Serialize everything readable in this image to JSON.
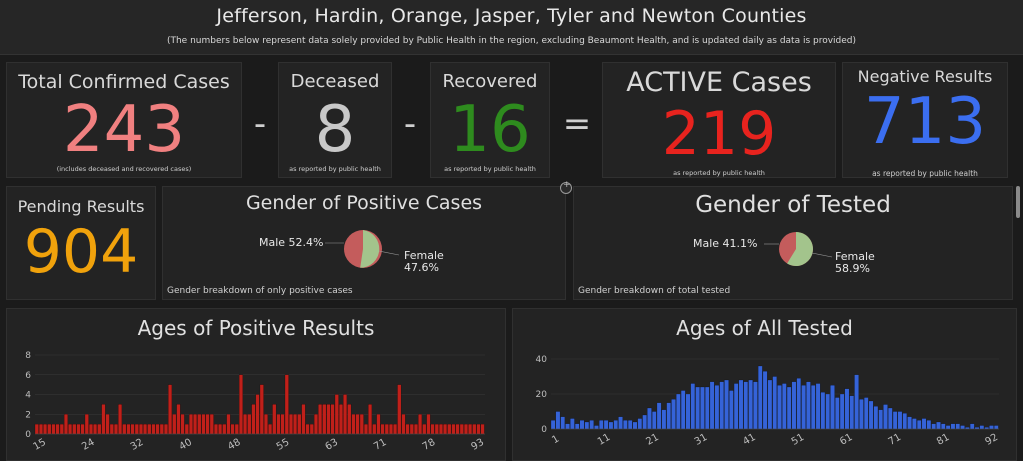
{
  "header": {
    "title": "Jefferson, Hardin, Orange, Jasper, Tyler and Newton Counties",
    "subtitle": "(The numbers below represent data solely provided by Public Health in the region, excluding Beaumont Health, and is updated daily as data is provided)"
  },
  "kpis": {
    "confirmed": {
      "label": "Total Confirmed Cases",
      "value": "243",
      "note": "(includes deceased and recovered cases)",
      "color": "#f08080"
    },
    "deceased": {
      "label": "Deceased",
      "value": "8",
      "note": "as reported by public health",
      "color": "#c8c8c8"
    },
    "recovered": {
      "label": "Recovered",
      "value": "16",
      "note": "as reported by public health",
      "color": "#2e8b1e"
    },
    "active": {
      "label": "ACTIVE Cases",
      "value": "219",
      "note": "as reported by public health",
      "color": "#e8231e"
    },
    "negative": {
      "label": "Negative Results",
      "value": "713",
      "note": "as reported by public health",
      "color": "#3b6ef0"
    },
    "pending": {
      "label": "Pending Results",
      "value": "904",
      "color": "#f0a20c"
    }
  },
  "operators": {
    "minus1": "-",
    "minus2": "-",
    "equals": "="
  },
  "gender_positive": {
    "title": "Gender of Positive Cases",
    "male_label": "Male 52.4%",
    "female_label": "Female",
    "female_pct": "47.6%",
    "note": "Gender breakdown of only positive cases",
    "male_color": "#c45c5c",
    "female_color": "#a3c48c"
  },
  "gender_tested": {
    "title": "Gender of Tested",
    "male_label": "Male 41.1%",
    "female_label": "Female",
    "female_pct": "58.9%",
    "note": "Gender breakdown of total tested",
    "male_color": "#c45c5c",
    "female_color": "#a3c48c"
  },
  "chart_data": [
    {
      "type": "bar",
      "title": "Ages of Positive Results",
      "color": "#c0201a",
      "x_start": 15,
      "x_ticks": [
        "15",
        "24",
        "32",
        "40",
        "48",
        "55",
        "63",
        "71",
        "78",
        "93"
      ],
      "y_ticks": [
        "0",
        "2",
        "4",
        "6",
        "8"
      ],
      "ylim": [
        0,
        8
      ],
      "values": [
        1,
        1,
        1,
        1,
        1,
        1,
        1,
        2,
        1,
        1,
        1,
        1,
        2,
        1,
        1,
        1,
        3,
        2,
        1,
        1,
        3,
        1,
        1,
        1,
        1,
        1,
        1,
        1,
        1,
        1,
        1,
        1,
        5,
        2,
        3,
        2,
        1,
        2,
        2,
        2,
        2,
        2,
        2,
        1,
        1,
        1,
        2,
        1,
        1,
        6,
        2,
        2,
        3,
        4,
        5,
        2,
        1,
        3,
        2,
        2,
        6,
        2,
        2,
        2,
        3,
        1,
        1,
        2,
        3,
        3,
        3,
        3,
        4,
        3,
        4,
        3,
        2,
        2,
        2,
        1,
        3,
        1,
        2,
        1,
        1,
        1,
        1,
        5,
        2,
        1,
        1,
        1,
        2,
        1,
        2,
        1,
        1,
        1,
        1,
        1,
        1,
        1,
        1,
        1,
        1,
        1,
        1,
        1
      ]
    },
    {
      "type": "bar",
      "title": "Ages of All Tested",
      "color": "#3563d8",
      "x_start": 1,
      "x_ticks": [
        "1",
        "11",
        "21",
        "31",
        "41",
        "51",
        "61",
        "71",
        "81",
        "92"
      ],
      "y_ticks": [
        "0",
        "20",
        "40"
      ],
      "ylim": [
        0,
        40
      ],
      "values": [
        5,
        10,
        7,
        3,
        6,
        3,
        5,
        4,
        5,
        2,
        5,
        5,
        4,
        5,
        7,
        5,
        5,
        4,
        6,
        8,
        12,
        10,
        15,
        11,
        15,
        17,
        20,
        22,
        20,
        26,
        24,
        24,
        24,
        27,
        25,
        27,
        28,
        22,
        26,
        28,
        27,
        28,
        27,
        36,
        33,
        28,
        30,
        25,
        26,
        24,
        27,
        29,
        25,
        27,
        25,
        26,
        21,
        20,
        25,
        18,
        20,
        23,
        19,
        31,
        17,
        18,
        16,
        13,
        11,
        14,
        12,
        10,
        10,
        9,
        7,
        6,
        5,
        6,
        5,
        3,
        4,
        3,
        2,
        3,
        3,
        2,
        1,
        3,
        1,
        2,
        1,
        2,
        2
      ]
    }
  ]
}
